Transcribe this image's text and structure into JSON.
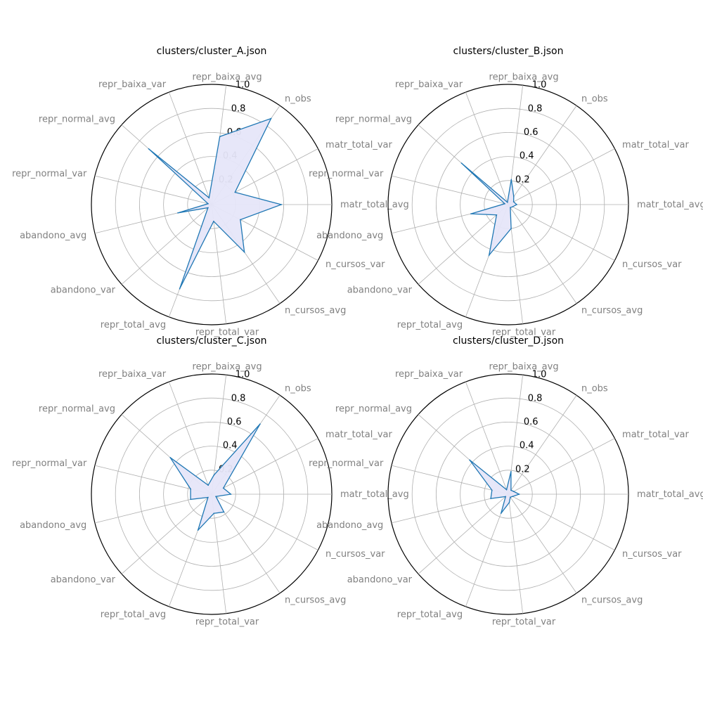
{
  "colors": {
    "line": "#1f77b4",
    "fill": "#e6e6f9",
    "grid": "#b0b0b0",
    "outer": "#000000",
    "axis_label": "#808080",
    "tick_label": "#000000"
  },
  "chart_data": [
    {
      "type": "radar",
      "title": "clusters/cluster_A.json",
      "axes": [
        "matr_total_avg",
        "matr_total_var",
        "n_obs",
        "repr_baixa_avg",
        "repr_baixa_var",
        "repr_normal_avg",
        "repr_normal_var",
        "abandono_avg",
        "abandono_var",
        "repr_total_avg",
        "repr_total_var",
        "n_cursos_avg",
        "n_cursos_var"
      ],
      "values": [
        0.58,
        0.22,
        0.87,
        0.57,
        0.06,
        0.7,
        0.03,
        0.29,
        0.04,
        0.75,
        0.14,
        0.48,
        0.27
      ],
      "rlim": [
        0,
        1.0
      ],
      "r_ticks": [
        "0.2",
        "0.4",
        "0.6",
        "0.8",
        "1.0"
      ],
      "grid": true
    },
    {
      "type": "radar",
      "title": "clusters/cluster_B.json",
      "axes": [
        "matr_total_avg",
        "matr_total_var",
        "n_obs",
        "repr_baixa_avg",
        "repr_baixa_var",
        "repr_normal_avg",
        "repr_normal_var",
        "abandono_avg",
        "abandono_var",
        "repr_total_avg",
        "repr_total_var",
        "n_cursos_avg",
        "n_cursos_var"
      ],
      "values": [
        0.07,
        0.05,
        0.08,
        0.21,
        0.02,
        0.52,
        0.03,
        0.32,
        0.13,
        0.45,
        0.2,
        0.03,
        0.04
      ],
      "rlim": [
        0,
        1.0
      ],
      "r_ticks": [
        "0.2",
        "0.4",
        "0.6",
        "0.8",
        "1.0"
      ],
      "grid": true
    },
    {
      "type": "radar",
      "title": "clusters/cluster_C.json",
      "axes": [
        "matr_total_avg",
        "matr_total_var",
        "n_obs",
        "repr_baixa_avg",
        "repr_baixa_var",
        "repr_normal_avg",
        "repr_normal_var",
        "abandono_avg",
        "abandono_var",
        "repr_total_avg",
        "repr_total_var",
        "n_cursos_avg",
        "n_cursos_var"
      ],
      "values": [
        0.16,
        0.11,
        0.71,
        0.16,
        0.08,
        0.46,
        0.18,
        0.18,
        0.04,
        0.32,
        0.16,
        0.18,
        0.04
      ],
      "rlim": [
        0,
        1.0
      ],
      "r_ticks": [
        "0.2",
        "0.4",
        "0.6",
        "0.8",
        "1.0"
      ],
      "grid": true
    },
    {
      "type": "radar",
      "title": "clusters/cluster_D.json",
      "axes": [
        "matr_total_avg",
        "matr_total_var",
        "n_obs",
        "repr_baixa_avg",
        "repr_baixa_var",
        "repr_normal_avg",
        "repr_normal_var",
        "abandono_avg",
        "abandono_var",
        "repr_total_avg",
        "repr_total_var",
        "n_cursos_avg",
        "n_cursos_var"
      ],
      "values": [
        0.09,
        0.05,
        0.04,
        0.19,
        0.04,
        0.43,
        0.14,
        0.15,
        0.03,
        0.17,
        0.07,
        0.03,
        0.04
      ],
      "rlim": [
        0,
        1.0
      ],
      "r_ticks": [
        "0.2",
        "0.4",
        "0.6",
        "0.8",
        "1.0"
      ],
      "grid": true
    }
  ]
}
